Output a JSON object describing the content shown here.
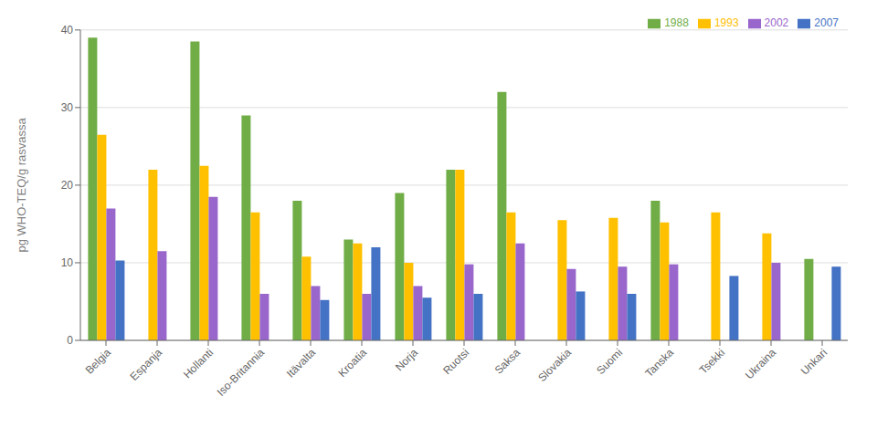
{
  "chart_data": {
    "type": "bar",
    "ylabel": "pg WHO-TEQ/g rasvassa",
    "categories": [
      "Belgia",
      "Espanja",
      "Hollanti",
      "Iso-Britannia",
      "Itävalta",
      "Kroatia",
      "Norja",
      "Ruotsi",
      "Saksa",
      "Slovakia",
      "Suomi",
      "Tanska",
      "Tsekki",
      "Ukraina",
      "Unkari"
    ],
    "series": [
      {
        "name": "1988",
        "color": "#70AD47",
        "values": [
          39,
          null,
          38.5,
          29,
          18,
          13,
          19,
          22,
          32,
          null,
          null,
          18,
          null,
          null,
          10.5
        ]
      },
      {
        "name": "1993",
        "color": "#FFC000",
        "values": [
          26.5,
          22,
          22.5,
          16.5,
          10.8,
          12.5,
          10,
          22,
          16.5,
          15.5,
          15.8,
          15.2,
          16.5,
          13.8,
          null
        ]
      },
      {
        "name": "2002",
        "color": "#9966CC",
        "values": [
          17,
          11.5,
          18.5,
          6,
          7,
          6,
          7,
          9.8,
          12.5,
          9.2,
          9.5,
          9.8,
          null,
          10,
          null
        ]
      },
      {
        "name": "2007",
        "color": "#4472C4",
        "values": [
          10.3,
          null,
          null,
          null,
          5.2,
          12,
          5.5,
          6,
          null,
          6.3,
          6,
          null,
          8.3,
          null,
          9.5
        ]
      }
    ],
    "ylim": [
      0,
      40
    ],
    "yticks": [
      0,
      10,
      20,
      30,
      40
    ],
    "grid": true,
    "legend": "upper right"
  }
}
